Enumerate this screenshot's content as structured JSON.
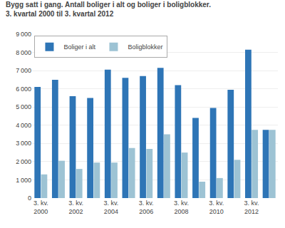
{
  "chart_data": {
    "type": "bar",
    "title": "Bygg satt i gang. Antall boliger i alt og boliger i boligblokker.",
    "subtitle": "3. kvartal 2000 til 3. kvartal 2012",
    "categories": [
      "3. kv.\n2000",
      null,
      "3. kv.\n2002",
      null,
      "3. kv.\n2004",
      null,
      "3. kv.\n2006",
      null,
      "3. kv.\n2008",
      null,
      "3. kv.\n2010",
      null,
      "3. kv.\n2012",
      null
    ],
    "series": [
      {
        "name": "Boliger i alt",
        "color": "#2E75B6",
        "values": [
          6100,
          6500,
          5600,
          5500,
          7050,
          6600,
          6700,
          7150,
          6200,
          4400,
          4950,
          5950,
          8150,
          3750
        ]
      },
      {
        "name": "Boligblokker",
        "color": "#9DC3D4",
        "values": [
          1300,
          2050,
          1600,
          1950,
          1950,
          2750,
          2700,
          3500,
          2500,
          900,
          1100,
          2100,
          3750,
          3750
        ]
      }
    ],
    "ylim": [
      0,
      9000
    ],
    "yticks": [
      0,
      {
        "value": 1000,
        "label": "1 000"
      },
      {
        "value": 2000,
        "label": "2 000"
      },
      {
        "value": 3000,
        "label": "3 000"
      },
      {
        "value": 4000,
        "label": "4 000"
      },
      {
        "value": 5000,
        "label": "5 000"
      },
      {
        "value": 6000,
        "label": "6 000"
      },
      {
        "value": 7000,
        "label": "7 000"
      },
      {
        "value": 8000,
        "label": "8 000"
      },
      {
        "value": 9000,
        "label": "9 000"
      }
    ],
    "grid": true,
    "legend": "upper left"
  }
}
